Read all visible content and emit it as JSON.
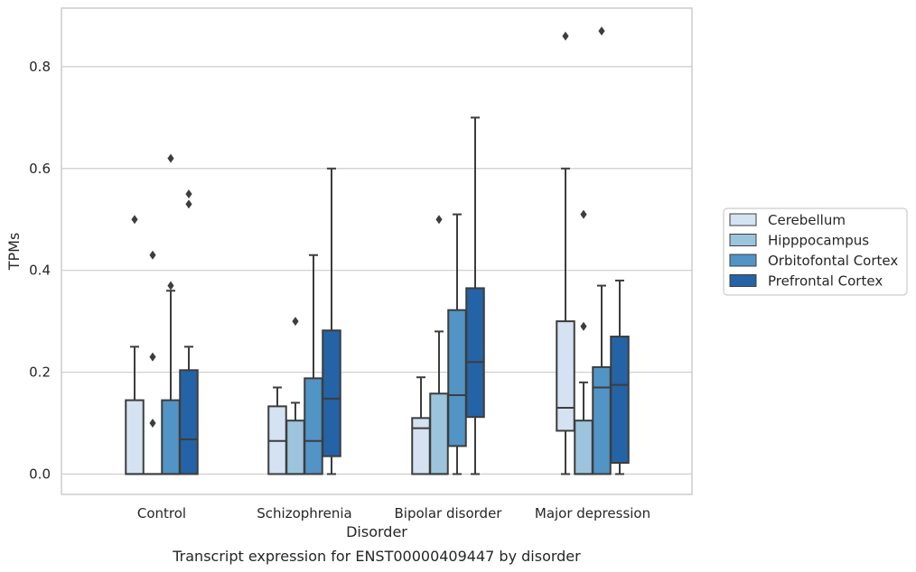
{
  "colors": {
    "grid": "#cccccc",
    "frame": "#cccccc",
    "box_edge": "#3d3d3d",
    "text": "#262626"
  },
  "caption": "Transcript expression for ENST00000409447 by disorder",
  "chart_data": {
    "type": "box",
    "title": "",
    "xlabel": "Disorder",
    "ylabel": "TPMs",
    "ylim": [
      -0.04,
      0.915
    ],
    "yticks": [
      0.0,
      0.2,
      0.4,
      0.6,
      0.8
    ],
    "ytick_labels": [
      "0.0",
      "0.2",
      "0.4",
      "0.6",
      "0.8"
    ],
    "grid": "horizontal",
    "legend_position": "right",
    "categories": [
      "Control",
      "Schizophrenia",
      "Bipolar disorder",
      "Major depression"
    ],
    "series": [
      {
        "name": "Cerebellum",
        "color": "#d4e2f1",
        "boxes": [
          {
            "q1": 0.0,
            "median": 0.0,
            "q3": 0.145,
            "whisker_low": 0.0,
            "whisker_high": 0.25,
            "outliers": [
              0.5
            ]
          },
          {
            "q1": 0.0,
            "median": 0.065,
            "q3": 0.133,
            "whisker_low": 0.0,
            "whisker_high": 0.17,
            "outliers": []
          },
          {
            "q1": 0.0,
            "median": 0.09,
            "q3": 0.11,
            "whisker_low": 0.0,
            "whisker_high": 0.19,
            "outliers": []
          },
          {
            "q1": 0.085,
            "median": 0.13,
            "q3": 0.3,
            "whisker_low": 0.0,
            "whisker_high": 0.6,
            "outliers": [
              0.86
            ]
          }
        ]
      },
      {
        "name": "Hipppocampus",
        "color": "#9cc4dd",
        "boxes": [
          {
            "q1": 0.0,
            "median": 0.0,
            "q3": 0.0,
            "whisker_low": 0.0,
            "whisker_high": 0.0,
            "outliers": [
              0.43,
              0.23,
              0.1
            ]
          },
          {
            "q1": 0.0,
            "median": 0.0,
            "q3": 0.105,
            "whisker_low": 0.0,
            "whisker_high": 0.14,
            "outliers": [
              0.3
            ]
          },
          {
            "q1": 0.0,
            "median": 0.0,
            "q3": 0.158,
            "whisker_low": 0.0,
            "whisker_high": 0.28,
            "outliers": [
              0.5
            ]
          },
          {
            "q1": 0.0,
            "median": 0.0,
            "q3": 0.105,
            "whisker_low": 0.0,
            "whisker_high": 0.18,
            "outliers": [
              0.51,
              0.29
            ]
          }
        ]
      },
      {
        "name": "Orbitofontal Cortex",
        "color": "#5294c5",
        "boxes": [
          {
            "q1": 0.0,
            "median": 0.0,
            "q3": 0.145,
            "whisker_low": 0.0,
            "whisker_high": 0.36,
            "outliers": [
              0.62,
              0.37
            ]
          },
          {
            "q1": 0.0,
            "median": 0.065,
            "q3": 0.188,
            "whisker_low": 0.0,
            "whisker_high": 0.43,
            "outliers": []
          },
          {
            "q1": 0.055,
            "median": 0.155,
            "q3": 0.322,
            "whisker_low": 0.0,
            "whisker_high": 0.51,
            "outliers": []
          },
          {
            "q1": 0.0,
            "median": 0.17,
            "q3": 0.21,
            "whisker_low": 0.0,
            "whisker_high": 0.37,
            "outliers": [
              0.87
            ]
          }
        ]
      },
      {
        "name": "Prefrontal Cortex",
        "color": "#2463a5",
        "boxes": [
          {
            "q1": 0.0,
            "median": 0.068,
            "q3": 0.204,
            "whisker_low": 0.0,
            "whisker_high": 0.25,
            "outliers": [
              0.55,
              0.53
            ]
          },
          {
            "q1": 0.035,
            "median": 0.148,
            "q3": 0.282,
            "whisker_low": 0.0,
            "whisker_high": 0.6,
            "outliers": []
          },
          {
            "q1": 0.112,
            "median": 0.22,
            "q3": 0.365,
            "whisker_low": 0.0,
            "whisker_high": 0.7,
            "outliers": []
          },
          {
            "q1": 0.022,
            "median": 0.175,
            "q3": 0.27,
            "whisker_low": 0.0,
            "whisker_high": 0.38,
            "outliers": []
          }
        ]
      }
    ]
  }
}
